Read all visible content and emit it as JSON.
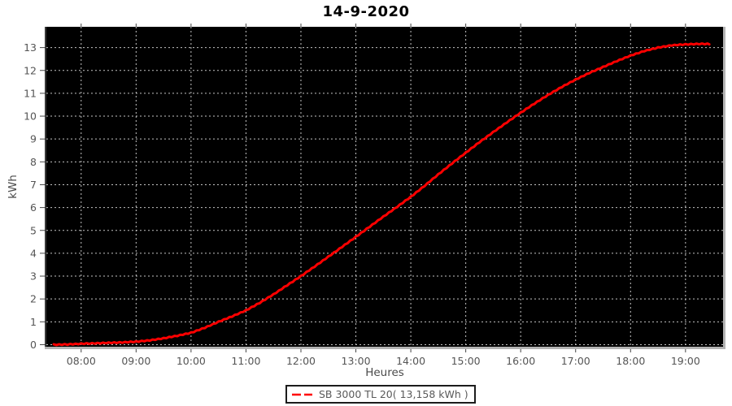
{
  "chart_data": {
    "type": "line",
    "title": "14-9-2020",
    "xlabel": "Heures",
    "ylabel": "kWh",
    "x_tick_labels": [
      "08:00",
      "09:00",
      "10:00",
      "11:00",
      "12:00",
      "13:00",
      "14:00",
      "15:00",
      "16:00",
      "17:00",
      "18:00",
      "19:00"
    ],
    "y_tick_labels": [
      0,
      1,
      2,
      3,
      4,
      5,
      6,
      7,
      8,
      9,
      10,
      11,
      12,
      13
    ],
    "xlim_minutes": [
      442,
      1181
    ],
    "ylim": [
      -0.09,
      13.91
    ],
    "grid": true,
    "legend_position": "bottom",
    "colors": {
      "plot_background": "#000000",
      "grid": "#c4c4c4",
      "series": "#ff0000",
      "axis_dark": "#3a3a3a",
      "axis_light": "#b3b3b3",
      "tick": "#444444"
    },
    "series": [
      {
        "name": "SB 3000 TL 20",
        "total_kwh_label": "13,158 kWh",
        "points": [
          [
            "07:30",
            0.0
          ],
          [
            "07:45",
            0.01
          ],
          [
            "08:00",
            0.04
          ],
          [
            "08:15",
            0.06
          ],
          [
            "08:30",
            0.08
          ],
          [
            "08:45",
            0.1
          ],
          [
            "09:00",
            0.13
          ],
          [
            "09:15",
            0.19
          ],
          [
            "09:30",
            0.28
          ],
          [
            "09:45",
            0.39
          ],
          [
            "10:00",
            0.52
          ],
          [
            "10:15",
            0.74
          ],
          [
            "10:30",
            1.0
          ],
          [
            "10:45",
            1.24
          ],
          [
            "11:00",
            1.5
          ],
          [
            "11:15",
            1.83
          ],
          [
            "11:30",
            2.2
          ],
          [
            "11:45",
            2.6
          ],
          [
            "12:00",
            3.0
          ],
          [
            "12:15",
            3.42
          ],
          [
            "12:30",
            3.85
          ],
          [
            "12:45",
            4.28
          ],
          [
            "13:00",
            4.72
          ],
          [
            "13:15",
            5.16
          ],
          [
            "13:30",
            5.6
          ],
          [
            "13:45",
            6.03
          ],
          [
            "14:00",
            6.47
          ],
          [
            "14:15",
            6.95
          ],
          [
            "14:30",
            7.45
          ],
          [
            "14:45",
            7.93
          ],
          [
            "15:00",
            8.4
          ],
          [
            "15:15",
            8.86
          ],
          [
            "15:30",
            9.3
          ],
          [
            "15:45",
            9.73
          ],
          [
            "16:00",
            10.15
          ],
          [
            "16:15",
            10.55
          ],
          [
            "16:30",
            10.93
          ],
          [
            "16:45",
            11.28
          ],
          [
            "17:00",
            11.6
          ],
          [
            "17:15",
            11.89
          ],
          [
            "17:30",
            12.15
          ],
          [
            "17:45",
            12.41
          ],
          [
            "18:00",
            12.65
          ],
          [
            "18:15",
            12.85
          ],
          [
            "18:30",
            13.0
          ],
          [
            "18:45",
            13.1
          ],
          [
            "19:00",
            13.14
          ],
          [
            "19:15",
            13.16
          ],
          [
            "19:26",
            13.16
          ]
        ]
      }
    ],
    "legend": {
      "label": "SB 3000 TL 20( 13,158 kWh )"
    }
  }
}
